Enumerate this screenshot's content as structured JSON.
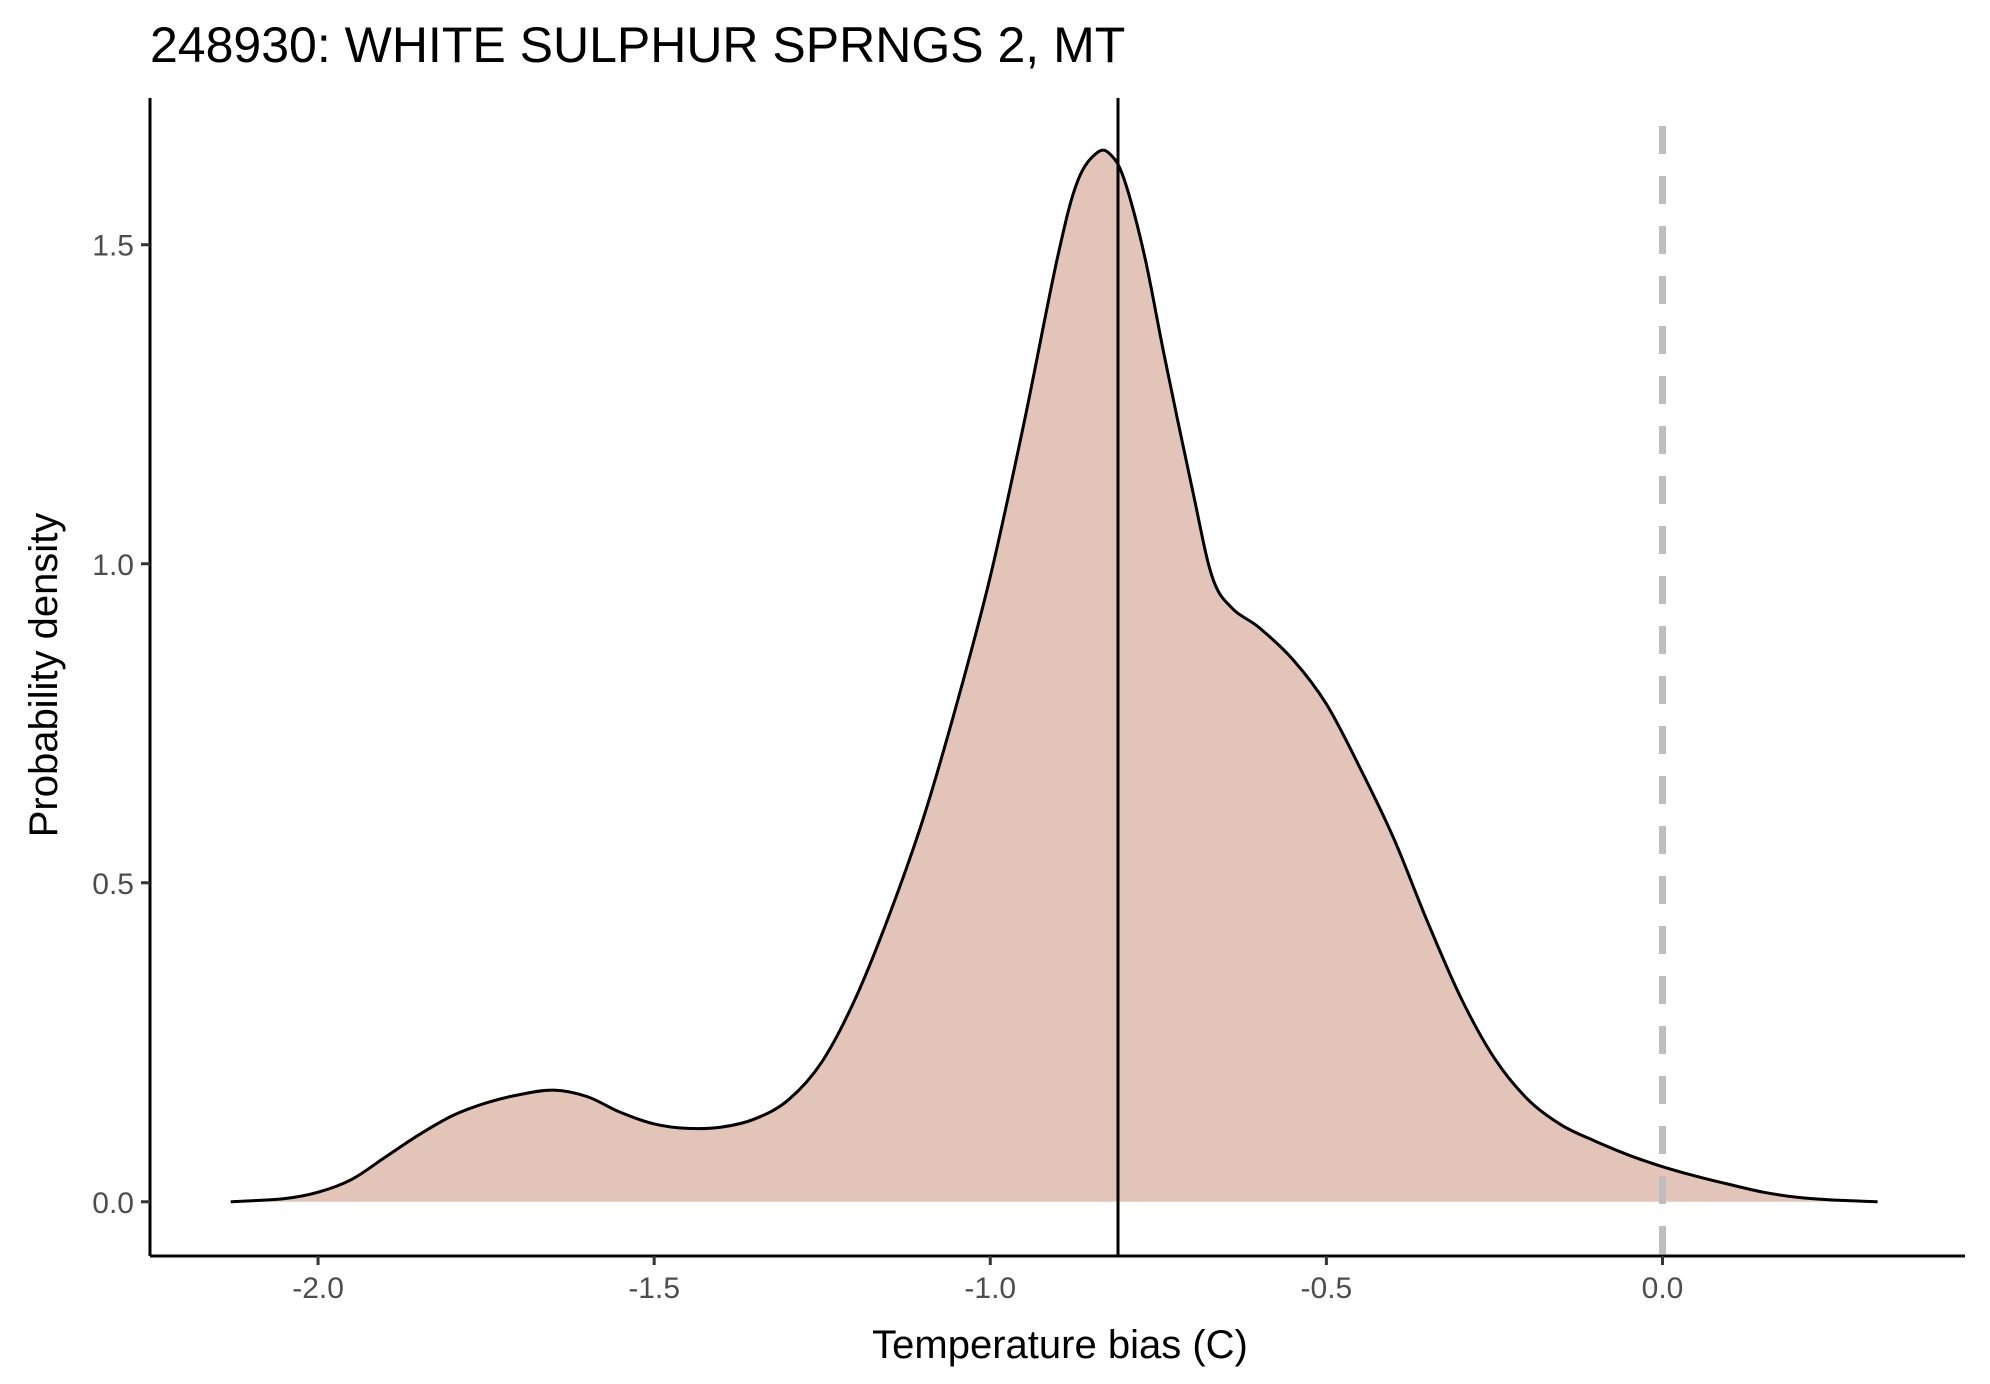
{
  "chart_data": {
    "type": "area",
    "title": "248930: WHITE SULPHUR SPRNGS 2, MT",
    "xlabel": "Temperature bias (C)",
    "ylabel": "Probability density",
    "xlim": [
      -2.25,
      0.45
    ],
    "ylim": [
      -0.085,
      1.73
    ],
    "x_ticks": [
      -2.0,
      -1.5,
      -1.0,
      -0.5,
      0.0
    ],
    "x_tick_labels": [
      "-2.0",
      "-1.5",
      "-1.0",
      "-0.5",
      "0.0"
    ],
    "y_ticks": [
      0.0,
      0.5,
      1.0,
      1.5
    ],
    "y_tick_labels": [
      "0.0",
      "0.5",
      "1.0",
      "1.5"
    ],
    "grid": false,
    "legend": "none",
    "fill_color": "#e3c4b9",
    "line_color": "#000000",
    "vertical_lines": [
      {
        "x": -0.81,
        "style": "solid",
        "color": "#000000"
      },
      {
        "x": 0.0,
        "style": "dashed",
        "color": "#bebebe"
      }
    ],
    "x": [
      -2.13,
      -2.05,
      -2.0,
      -1.95,
      -1.9,
      -1.85,
      -1.8,
      -1.75,
      -1.7,
      -1.65,
      -1.6,
      -1.55,
      -1.5,
      -1.45,
      -1.4,
      -1.35,
      -1.3,
      -1.25,
      -1.2,
      -1.15,
      -1.1,
      -1.05,
      -1.0,
      -0.95,
      -0.9,
      -0.87,
      -0.84,
      -0.82,
      -0.8,
      -0.77,
      -0.74,
      -0.7,
      -0.67,
      -0.64,
      -0.6,
      -0.55,
      -0.5,
      -0.45,
      -0.4,
      -0.35,
      -0.3,
      -0.25,
      -0.2,
      -0.15,
      -0.1,
      -0.05,
      0.0,
      0.05,
      0.1,
      0.15,
      0.2,
      0.25,
      0.32
    ],
    "y": [
      0.0,
      0.005,
      0.015,
      0.035,
      0.07,
      0.105,
      0.135,
      0.155,
      0.168,
      0.175,
      0.165,
      0.14,
      0.122,
      0.115,
      0.117,
      0.13,
      0.16,
      0.22,
      0.32,
      0.45,
      0.6,
      0.78,
      0.98,
      1.22,
      1.48,
      1.6,
      1.645,
      1.64,
      1.6,
      1.48,
      1.32,
      1.12,
      0.98,
      0.93,
      0.9,
      0.85,
      0.78,
      0.68,
      0.57,
      0.44,
      0.32,
      0.225,
      0.16,
      0.12,
      0.095,
      0.073,
      0.055,
      0.04,
      0.027,
      0.015,
      0.007,
      0.003,
      0.0
    ]
  }
}
